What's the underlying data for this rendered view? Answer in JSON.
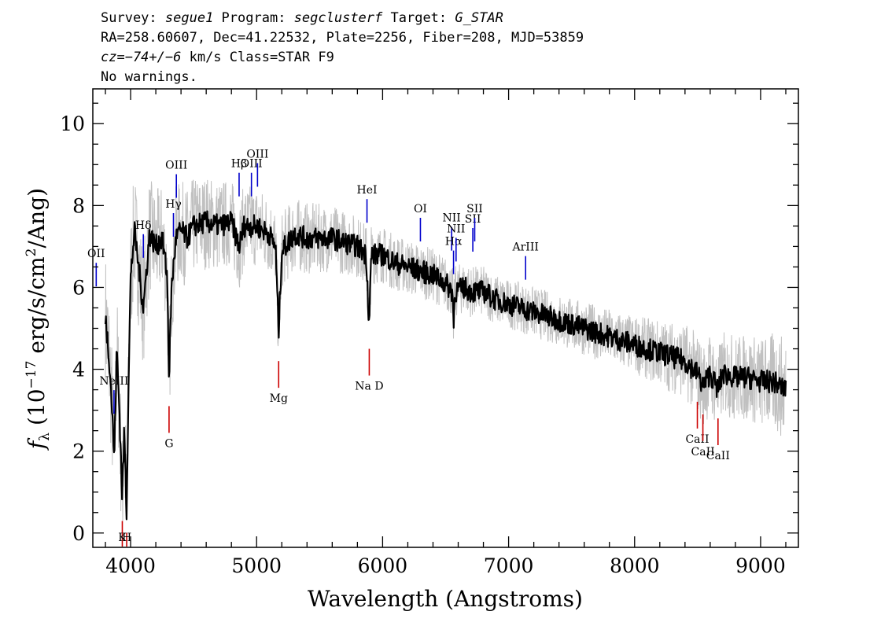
{
  "header": {
    "line1": {
      "survey_label": "Survey: ",
      "survey": "segue1",
      "program_label": " Program: ",
      "program": "segclusterf",
      "target_label": " Target: ",
      "target": "G_STAR"
    },
    "line2": "RA=258.60607, Dec=41.22532, Plate=2256, Fiber=208, MJD=53859",
    "line3": {
      "cz": "cz=−74+/−6",
      "rest": " km/s Class=STAR F9"
    },
    "line4": "No warnings."
  },
  "chart_data": {
    "type": "line",
    "xlabel": "Wavelength (Angstroms)",
    "ylabel": {
      "f": "f",
      "sub": "λ",
      "unit_open": " (10",
      "exp": "−17",
      "unit_close": " erg/s/cm",
      "exp2": "2",
      "tail": "/Ang)"
    },
    "xlim": [
      3700,
      9300
    ],
    "ylim": [
      -0.35,
      10.85
    ],
    "x_ticks": [
      4000,
      5000,
      6000,
      7000,
      8000,
      9000
    ],
    "y_ticks": [
      0,
      2,
      4,
      6,
      8,
      10
    ],
    "x_minor_step": 200,
    "y_minor_step": 0.5,
    "grid": false,
    "spectrum_range": [
      3800,
      9200
    ],
    "series": [
      {
        "role": "smoothed flux",
        "color": "#000000",
        "points": [
          [
            3800,
            5.3
          ],
          [
            3830,
            4.3
          ],
          [
            3850,
            3.2
          ],
          [
            3870,
            1.8
          ],
          [
            3890,
            4.5
          ],
          [
            3910,
            3.1
          ],
          [
            3933,
            0.9
          ],
          [
            3950,
            2.5
          ],
          [
            3968,
            0.5
          ],
          [
            3985,
            4.0
          ],
          [
            4000,
            6.2
          ],
          [
            4030,
            7.4
          ],
          [
            4060,
            6.6
          ],
          [
            4101,
            5.5
          ],
          [
            4150,
            7.3
          ],
          [
            4200,
            7.0
          ],
          [
            4250,
            7.2
          ],
          [
            4290,
            6.3
          ],
          [
            4305,
            3.8
          ],
          [
            4325,
            6.0
          ],
          [
            4360,
            7.2
          ],
          [
            4400,
            7.4
          ],
          [
            4450,
            7.2
          ],
          [
            4500,
            7.5
          ],
          [
            4600,
            7.6
          ],
          [
            4700,
            7.5
          ],
          [
            4800,
            7.6
          ],
          [
            4861,
            7.0
          ],
          [
            4900,
            7.5
          ],
          [
            5000,
            7.5
          ],
          [
            5100,
            7.3
          ],
          [
            5150,
            7.0
          ],
          [
            5175,
            4.9
          ],
          [
            5200,
            6.9
          ],
          [
            5300,
            7.3
          ],
          [
            5400,
            7.2
          ],
          [
            5500,
            7.2
          ],
          [
            5600,
            7.2
          ],
          [
            5700,
            7.1
          ],
          [
            5800,
            7.0
          ],
          [
            5870,
            6.8
          ],
          [
            5893,
            5.1
          ],
          [
            5910,
            6.8
          ],
          [
            6000,
            6.8
          ],
          [
            6100,
            6.6
          ],
          [
            6200,
            6.5
          ],
          [
            6300,
            6.4
          ],
          [
            6400,
            6.3
          ],
          [
            6500,
            6.1
          ],
          [
            6555,
            5.9
          ],
          [
            6563,
            5.1
          ],
          [
            6575,
            5.9
          ],
          [
            6650,
            6.0
          ],
          [
            6700,
            5.9
          ],
          [
            6800,
            5.9
          ],
          [
            6900,
            5.7
          ],
          [
            7000,
            5.6
          ],
          [
            7100,
            5.5
          ],
          [
            7200,
            5.4
          ],
          [
            7300,
            5.3
          ],
          [
            7400,
            5.2
          ],
          [
            7500,
            5.1
          ],
          [
            7600,
            5.0
          ],
          [
            7700,
            4.9
          ],
          [
            7800,
            4.8
          ],
          [
            7900,
            4.7
          ],
          [
            8000,
            4.6
          ],
          [
            8100,
            4.5
          ],
          [
            8200,
            4.4
          ],
          [
            8300,
            4.3
          ],
          [
            8400,
            4.2
          ],
          [
            8500,
            3.9
          ],
          [
            8542,
            3.6
          ],
          [
            8600,
            3.9
          ],
          [
            8662,
            3.5
          ],
          [
            8700,
            3.9
          ],
          [
            8800,
            3.8
          ],
          [
            8900,
            3.8
          ],
          [
            9000,
            3.7
          ],
          [
            9100,
            3.7
          ],
          [
            9200,
            3.5
          ]
        ]
      },
      {
        "role": "raw flux with noise",
        "color": "#c0c0c0",
        "noise_envelope": [
          [
            3800,
            1.6
          ],
          [
            4000,
            1.5
          ],
          [
            4500,
            1.2
          ],
          [
            5000,
            1.0
          ],
          [
            6000,
            0.7
          ],
          [
            7000,
            0.6
          ],
          [
            8000,
            0.7
          ],
          [
            8500,
            1.0
          ],
          [
            9000,
            1.1
          ],
          [
            9200,
            1.3
          ]
        ]
      }
    ],
    "emission_lines": [
      {
        "label": "OII",
        "wavelength": 3727
      },
      {
        "label": "NeIII",
        "wavelength": 3868
      },
      {
        "label": "Hδ",
        "wavelength": 4101
      },
      {
        "label": "Hγ",
        "wavelength": 4340
      },
      {
        "label": "OIII",
        "wavelength": 4363
      },
      {
        "label": "Hβ",
        "wavelength": 4861
      },
      {
        "label": "OIII",
        "wavelength": 4959
      },
      {
        "label": "OIII",
        "wavelength": 5007
      },
      {
        "label": "HeI",
        "wavelength": 5876
      },
      {
        "label": "OI",
        "wavelength": 6300
      },
      {
        "label": "NII",
        "wavelength": 6548
      },
      {
        "label": "Hα",
        "wavelength": 6563
      },
      {
        "label": "NII",
        "wavelength": 6583
      },
      {
        "label": "SII",
        "wavelength": 6716
      },
      {
        "label": "SII",
        "wavelength": 6731
      },
      {
        "label": "ArIII",
        "wavelength": 7135
      }
    ],
    "absorption_lines": [
      {
        "label": "K",
        "wavelength": 3934
      },
      {
        "label": "H",
        "wavelength": 3969
      },
      {
        "label": "G",
        "wavelength": 4305
      },
      {
        "label": "Mg",
        "wavelength": 5175
      },
      {
        "label": "Na D",
        "wavelength": 5894
      },
      {
        "label": "CaII",
        "wavelength": 8498
      },
      {
        "label": "CaII",
        "wavelength": 8542
      },
      {
        "label": "CaII",
        "wavelength": 8662
      }
    ],
    "colors": {
      "emission": "#0000cc",
      "absorption": "#cc0000",
      "flux": "#000000",
      "noise": "#c0c0c0",
      "axes": "#000000"
    }
  }
}
